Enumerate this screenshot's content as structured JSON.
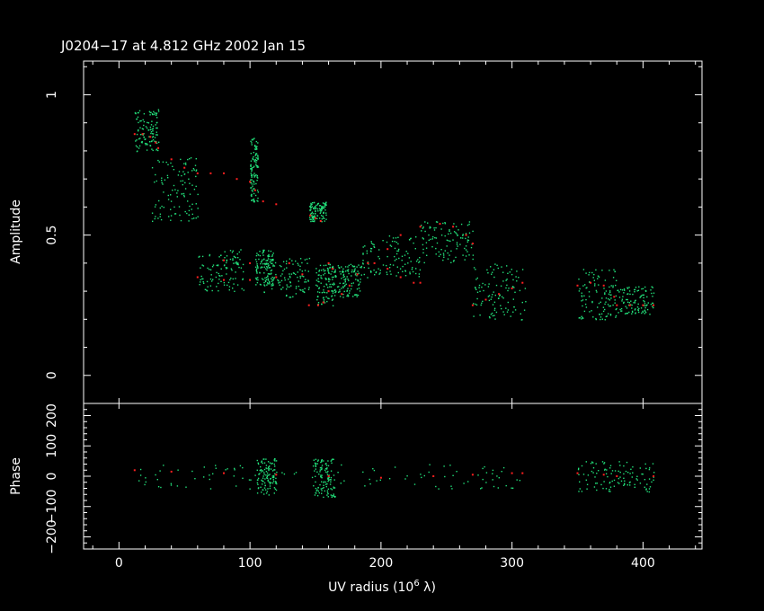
{
  "chart_data": [
    {
      "type": "scatter",
      "panel": "amplitude",
      "title": "J0204−17 at 4.812 GHz 2002 Jan 15",
      "ylabel": "Amplitude",
      "xlabel": "UV radius  (10^6 λ)",
      "xlim": [
        -27,
        445
      ],
      "ylim": [
        -0.1,
        1.12
      ],
      "x_ticks": [
        "0",
        "100",
        "200",
        "300",
        "400"
      ],
      "y_ticks": [
        "0",
        "0.5",
        "1"
      ],
      "grid": false,
      "colors": {
        "background": "#000000",
        "data": "#22e07a",
        "model": "#ff2020",
        "axes": "#ffffff"
      },
      "series": [
        {
          "role": "data",
          "clusters": [
            {
              "x": [
                12,
                30
              ],
              "y": [
                0.8,
                0.95
              ]
            },
            {
              "x": [
                25,
                60
              ],
              "y": [
                0.55,
                0.78
              ]
            },
            {
              "x": [
                60,
                95
              ],
              "y": [
                0.3,
                0.45
              ]
            },
            {
              "x": [
                100,
                106
              ],
              "y": [
                0.62,
                0.85
              ]
            },
            {
              "x": [
                104,
                118
              ],
              "y": [
                0.32,
                0.45
              ]
            },
            {
              "x": [
                110,
                145
              ],
              "y": [
                0.28,
                0.42
              ]
            },
            {
              "x": [
                145,
                158
              ],
              "y": [
                0.55,
                0.62
              ]
            },
            {
              "x": [
                150,
                165
              ],
              "y": [
                0.25,
                0.4
              ]
            },
            {
              "x": [
                165,
                185
              ],
              "y": [
                0.28,
                0.4
              ]
            },
            {
              "x": [
                185,
                230
              ],
              "y": [
                0.35,
                0.5
              ]
            },
            {
              "x": [
                230,
                270
              ],
              "y": [
                0.4,
                0.55
              ]
            },
            {
              "x": [
                270,
                310
              ],
              "y": [
                0.2,
                0.4
              ]
            },
            {
              "x": [
                350,
                380
              ],
              "y": [
                0.2,
                0.38
              ]
            },
            {
              "x": [
                380,
                408
              ],
              "y": [
                0.22,
                0.32
              ]
            }
          ]
        },
        {
          "role": "model",
          "points": [
            [
              12,
              0.86
            ],
            [
              18,
              0.86
            ],
            [
              24,
              0.85
            ],
            [
              28,
              0.83
            ],
            [
              30,
              0.81
            ],
            [
              40,
              0.77
            ],
            [
              50,
              0.74
            ],
            [
              60,
              0.72
            ],
            [
              70,
              0.72
            ],
            [
              80,
              0.72
            ],
            [
              90,
              0.7
            ],
            [
              100,
              0.69
            ],
            [
              104,
              0.66
            ],
            [
              110,
              0.62
            ],
            [
              120,
              0.61
            ],
            [
              60,
              0.35
            ],
            [
              80,
              0.34
            ],
            [
              100,
              0.34
            ],
            [
              120,
              0.35
            ],
            [
              140,
              0.36
            ],
            [
              80,
              0.41
            ],
            [
              100,
              0.4
            ],
            [
              130,
              0.4
            ],
            [
              160,
              0.4
            ],
            [
              190,
              0.4
            ],
            [
              146,
              0.57
            ],
            [
              150,
              0.56
            ],
            [
              154,
              0.55
            ],
            [
              145,
              0.25
            ],
            [
              152,
              0.25
            ],
            [
              156,
              0.26
            ],
            [
              160,
              0.3
            ],
            [
              163,
              0.38
            ],
            [
              170,
              0.29
            ],
            [
              176,
              0.32
            ],
            [
              182,
              0.36
            ],
            [
              195,
              0.4
            ],
            [
              205,
              0.38
            ],
            [
              215,
              0.35
            ],
            [
              225,
              0.33
            ],
            [
              230,
              0.33
            ],
            [
              205,
              0.45
            ],
            [
              215,
              0.5
            ],
            [
              230,
              0.53
            ],
            [
              245,
              0.54
            ],
            [
              255,
              0.53
            ],
            [
              265,
              0.5
            ],
            [
              270,
              0.47
            ],
            [
              270,
              0.25
            ],
            [
              280,
              0.27
            ],
            [
              290,
              0.29
            ],
            [
              300,
              0.31
            ],
            [
              308,
              0.33
            ],
            [
              350,
              0.32
            ],
            [
              360,
              0.33
            ],
            [
              370,
              0.32
            ],
            [
              378,
              0.28
            ],
            [
              380,
              0.25
            ],
            [
              390,
              0.25
            ],
            [
              400,
              0.25
            ],
            [
              408,
              0.25
            ]
          ]
        }
      ]
    },
    {
      "type": "scatter",
      "panel": "phase",
      "ylabel": "Phase",
      "xlabel": "UV radius  (10^6 λ)",
      "xlim": [
        -27,
        445
      ],
      "ylim": [
        -240,
        240
      ],
      "x_ticks": [
        "0",
        "100",
        "200",
        "300",
        "400"
      ],
      "y_ticks": [
        "−200",
        "−100",
        "0",
        "100",
        "200"
      ],
      "grid": false,
      "series": [
        {
          "role": "data",
          "clusters": [
            {
              "x": [
                12,
                310
              ],
              "y": [
                -40,
                40
              ]
            },
            {
              "x": [
                105,
                120
              ],
              "y": [
                -60,
                60
              ]
            },
            {
              "x": [
                148,
                165
              ],
              "y": [
                -70,
                60
              ]
            },
            {
              "x": [
                350,
                408
              ],
              "y": [
                -50,
                50
              ]
            }
          ]
        },
        {
          "role": "model",
          "points": [
            [
              12,
              20
            ],
            [
              40,
              15
            ],
            [
              80,
              10
            ],
            [
              120,
              5
            ],
            [
              160,
              0
            ],
            [
              200,
              -5
            ],
            [
              240,
              0
            ],
            [
              270,
              5
            ],
            [
              300,
              10
            ],
            [
              308,
              10
            ],
            [
              350,
              10
            ],
            [
              370,
              5
            ],
            [
              380,
              0
            ],
            [
              408,
              0
            ]
          ]
        }
      ]
    }
  ],
  "ui": {
    "title": "J0204−17 at 4.812 GHz 2002 Jan 15",
    "amp_ylabel": "Amplitude",
    "phase_ylabel": "Phase",
    "xlabel_main": "UV radius  (10",
    "xlabel_exp": "6",
    "xlabel_tail": " λ)"
  }
}
